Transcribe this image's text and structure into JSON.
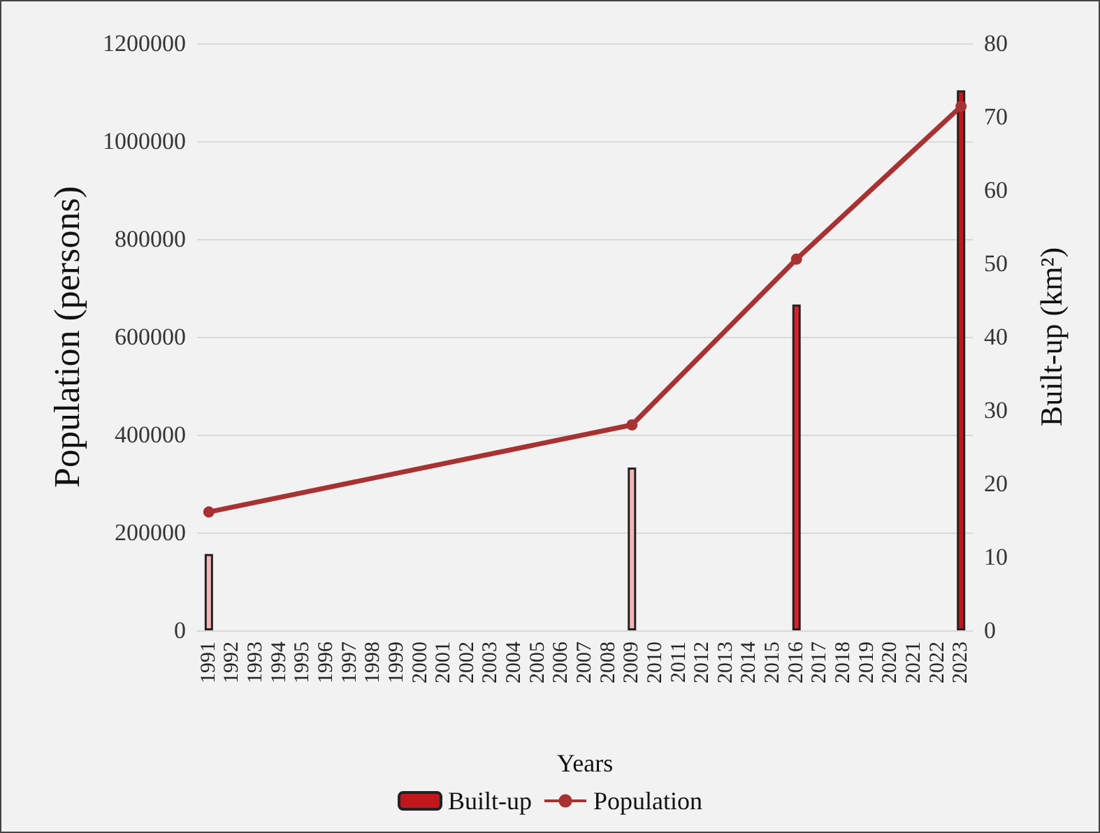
{
  "chart_data": {
    "type": "bar",
    "xlabel": "Years",
    "ylabel": "Population (persons)",
    "y2label": "Built-up (km²)",
    "categories": [
      "1991",
      "1992",
      "1993",
      "1994",
      "1995",
      "1996",
      "1997",
      "1998",
      "1999",
      "2000",
      "2001",
      "2002",
      "2003",
      "2004",
      "2005",
      "2006",
      "2007",
      "2008",
      "2009",
      "2010",
      "2011",
      "2012",
      "2013",
      "2014",
      "2015",
      "2016",
      "2017",
      "2018",
      "2019",
      "2020",
      "2021",
      "2022",
      "2023"
    ],
    "series": [
      {
        "name": "Built-up",
        "axis": "y2",
        "color": "#c0161c",
        "colors": [
          "#f4b6b8",
          null,
          null,
          null,
          null,
          null,
          null,
          null,
          null,
          null,
          null,
          null,
          null,
          null,
          null,
          null,
          null,
          null,
          "#f4b6b8",
          null,
          null,
          null,
          null,
          null,
          null,
          "#e31e24",
          null,
          null,
          null,
          null,
          null,
          null,
          "#c0161c"
        ],
        "values": [
          10.4,
          null,
          null,
          null,
          null,
          null,
          null,
          null,
          null,
          null,
          null,
          null,
          null,
          null,
          null,
          null,
          null,
          null,
          22.2,
          null,
          null,
          null,
          null,
          null,
          null,
          44.4,
          null,
          null,
          null,
          null,
          null,
          null,
          73.6
        ]
      },
      {
        "name": "Population",
        "type": "line",
        "color": "#a83232",
        "marker": "circle",
        "values": [
          242000,
          null,
          null,
          null,
          null,
          null,
          null,
          null,
          null,
          null,
          null,
          null,
          null,
          null,
          null,
          null,
          null,
          null,
          420000,
          null,
          null,
          null,
          null,
          null,
          null,
          759000,
          null,
          null,
          null,
          null,
          null,
          null,
          1071000
        ]
      }
    ],
    "ylim": [
      0,
      1200000
    ],
    "yticks": [
      0,
      200000,
      400000,
      600000,
      800000,
      1000000,
      1200000
    ],
    "y2lim": [
      0,
      80
    ],
    "y2ticks": [
      0,
      10,
      20,
      30,
      40,
      50,
      60,
      70,
      80
    ],
    "grid": "y",
    "legend": "bottom"
  }
}
